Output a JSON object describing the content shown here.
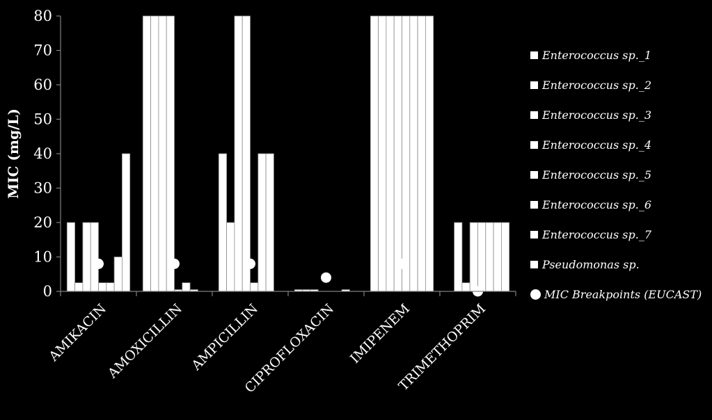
{
  "chart_data": {
    "type": "bar",
    "ylabel": "MIC (mg/L)",
    "ylim": [
      0,
      80
    ],
    "yticks": [
      "0",
      "10",
      "20",
      "30",
      "40",
      "50",
      "60",
      "70",
      "80"
    ],
    "categories": [
      "AMIKACIN",
      "AMOXICILLIN",
      "AMPICILLIN",
      "CIPROFLOXACIN",
      "IMIPENEM",
      "TRIMETHOPRIM"
    ],
    "series": [
      {
        "name": "Enterococcus sp._1",
        "values": [
          20,
          80,
          40,
          0.5,
          80,
          0
        ]
      },
      {
        "name": "Enterococcus sp._2",
        "values": [
          2.5,
          80,
          20,
          0.5,
          80,
          20
        ]
      },
      {
        "name": "Enterococcus sp._3",
        "values": [
          20,
          80,
          80,
          0.5,
          80,
          2.5
        ]
      },
      {
        "name": "Enterococcus sp._4",
        "values": [
          20,
          80,
          80,
          0,
          80,
          20
        ]
      },
      {
        "name": "Enterococcus sp._5",
        "values": [
          2.5,
          0.5,
          2.5,
          0,
          80,
          20
        ]
      },
      {
        "name": "Enterococcus sp._6",
        "values": [
          2.5,
          2.5,
          40,
          0,
          80,
          20
        ]
      },
      {
        "name": "Enterococcus sp._7",
        "values": [
          10,
          0.5,
          40,
          0.5,
          80,
          20
        ]
      },
      {
        "name": "Pseudomonas sp.",
        "values": [
          40,
          0,
          0,
          0,
          80,
          20
        ]
      }
    ],
    "breakpoints": {
      "name": "MIC Breakpoints (EUCAST)",
      "values": [
        8,
        8,
        8,
        4,
        8,
        0
      ]
    },
    "grid": false,
    "legend_position": "right"
  },
  "colors": {
    "background": "#000000",
    "bars": "#ffffff",
    "bar_edge": "#8a8a8a",
    "axis": "#808080",
    "text": "#ffffff"
  }
}
